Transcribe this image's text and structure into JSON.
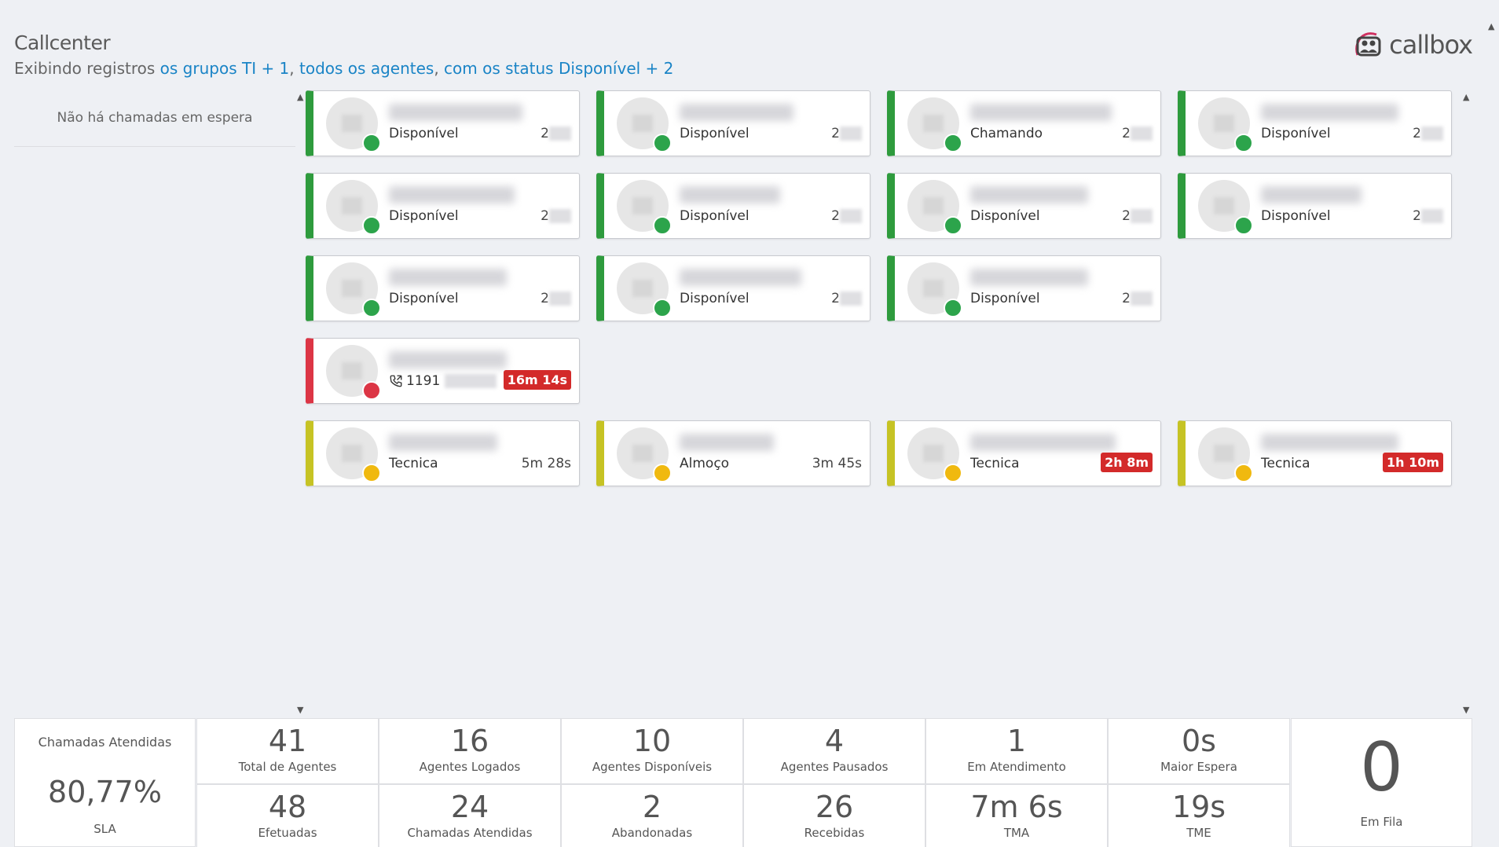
{
  "header": {
    "title": "Callcenter",
    "subtitle_prefix": "Exibindo registros",
    "subtitle_groups": "os grupos TI + 1",
    "subtitle_sep1": ",",
    "subtitle_agents": "todos os agentes",
    "subtitle_sep2": ",",
    "subtitle_status": "com os status Disponível + 2"
  },
  "logo": {
    "text": "callbox",
    "icon": "callbox-people-icon",
    "accent": "#d03060"
  },
  "queue": {
    "empty_message": "Não há chamadas em espera"
  },
  "colors": {
    "available": "#2e9b3d",
    "busy": "#dc3545",
    "paused": "#c6c324",
    "link": "#1a84c6"
  },
  "agents": [
    {
      "status": "Disponível",
      "time": "2"
    },
    {
      "status": "Disponível",
      "time": "2"
    },
    {
      "status": "Chamando",
      "time": "2"
    },
    {
      "status": "Disponível",
      "time": "2"
    },
    {
      "status": "Disponível",
      "time": "2"
    },
    {
      "status": "Disponível",
      "time": "2"
    },
    {
      "status": "Disponível",
      "time": "2"
    },
    {
      "status": "Disponível",
      "time": "2"
    },
    {
      "status": "Disponível",
      "time": "2"
    },
    {
      "status": "Disponível",
      "time": "2"
    },
    {
      "status": "Disponível",
      "time": "2"
    },
    {
      "status": "1191",
      "time": "16m 14s",
      "phone_icon": "phone-icon"
    },
    {
      "status": "Tecnica",
      "time": "5m 28s"
    },
    {
      "status": "Almoço",
      "time": "3m 45s"
    },
    {
      "status": "Tecnica",
      "time": "2h 8m"
    },
    {
      "status": "Tecnica",
      "time": "1h 10m"
    }
  ],
  "stats": {
    "sla": {
      "label": "Chamadas Atendidas",
      "value": "80,77%",
      "sub": "SLA"
    },
    "row1": [
      {
        "value": "41",
        "label": "Total de Agentes"
      },
      {
        "value": "16",
        "label": "Agentes Logados"
      },
      {
        "value": "10",
        "label": "Agentes Disponíveis"
      },
      {
        "value": "4",
        "label": "Agentes Pausados"
      },
      {
        "value": "1",
        "label": "Em Atendimento"
      },
      {
        "value": "0s",
        "label": "Maior Espera"
      }
    ],
    "row2": [
      {
        "value": "48",
        "label": "Efetuadas"
      },
      {
        "value": "24",
        "label": "Chamadas Atendidas"
      },
      {
        "value": "2",
        "label": "Abandonadas"
      },
      {
        "value": "26",
        "label": "Recebidas"
      },
      {
        "value": "7m 6s",
        "label": "TMA"
      },
      {
        "value": "19s",
        "label": "TME"
      }
    ],
    "queue": {
      "value": "0",
      "label": "Em Fila"
    }
  }
}
